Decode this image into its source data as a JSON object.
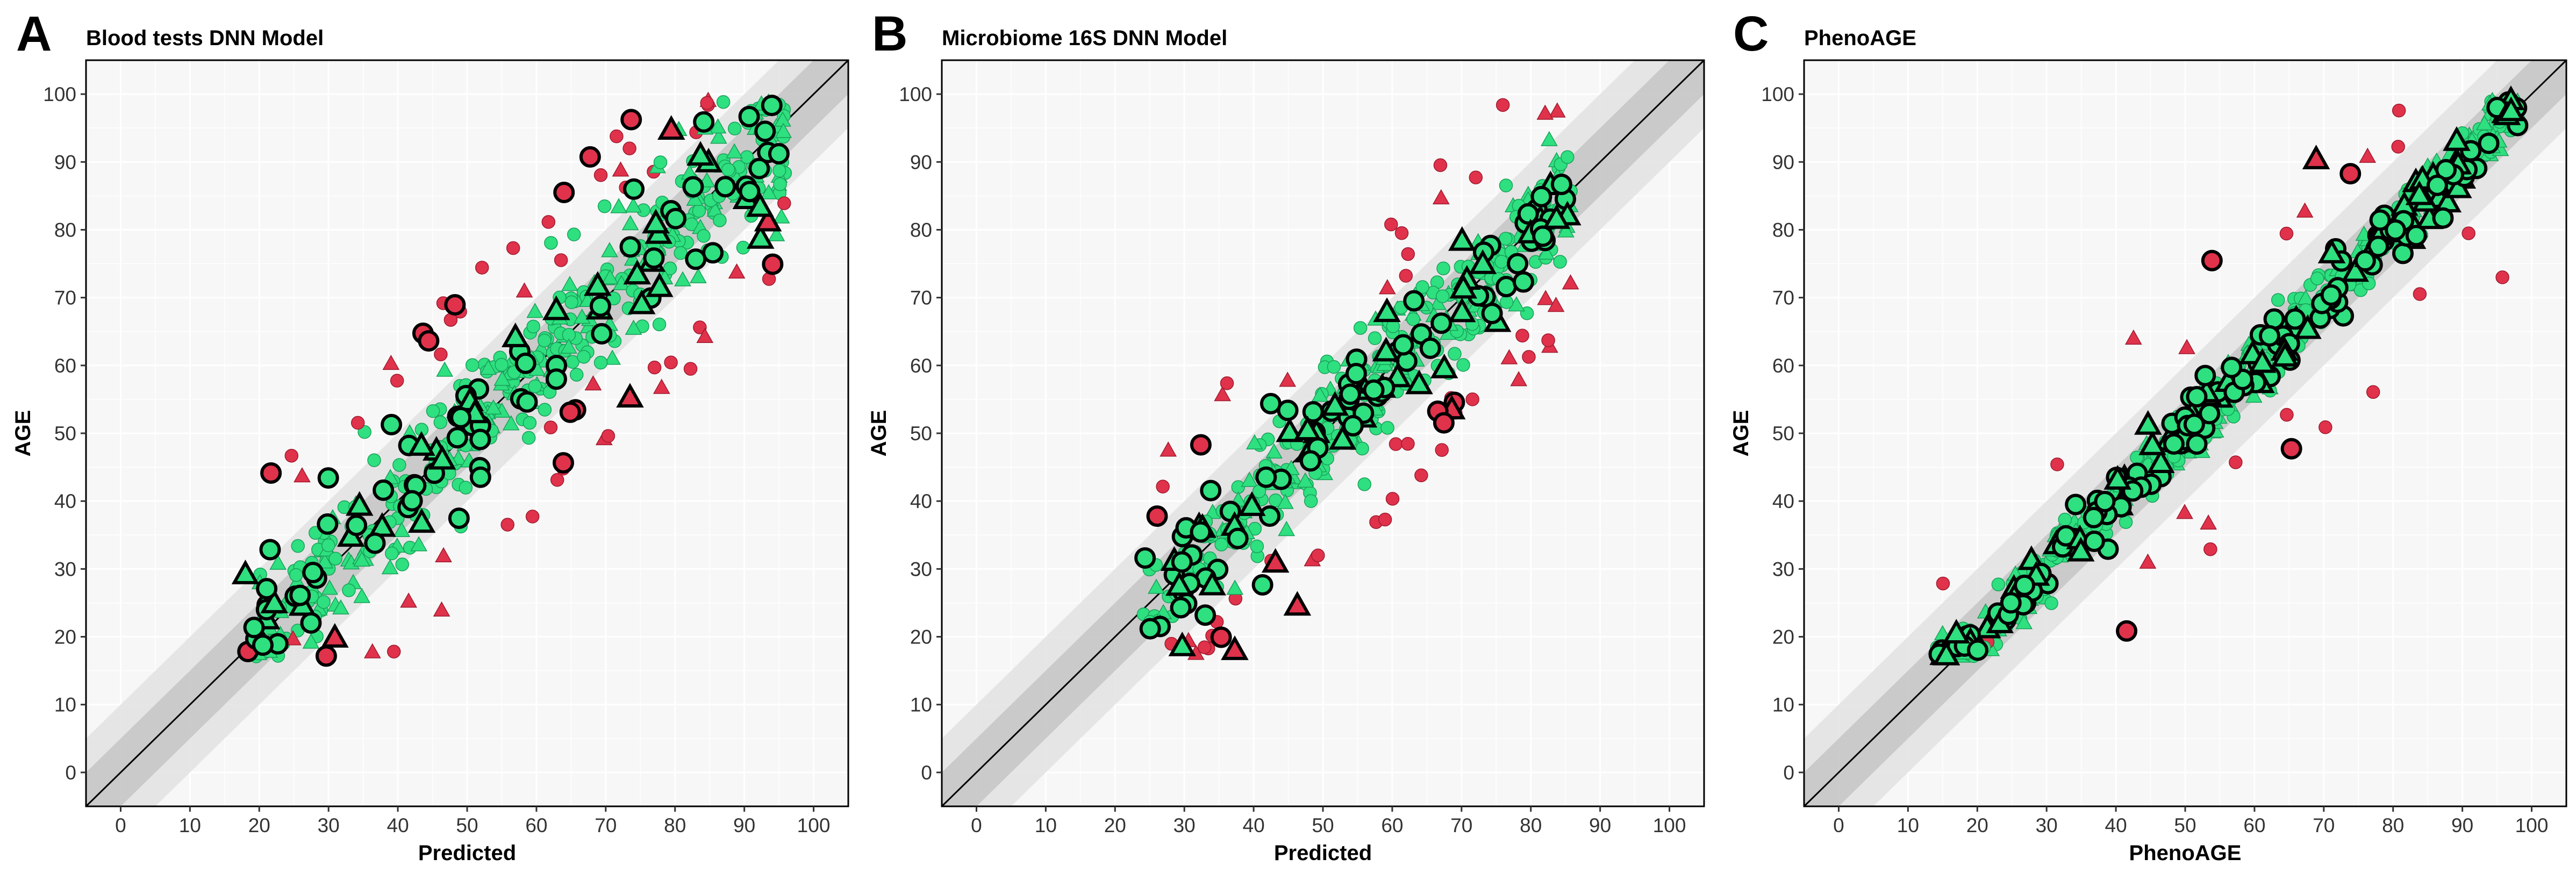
{
  "colors": {
    "accurate": "#2ee07f",
    "outlier": "#e0324b",
    "band_outer": "#e2e2e2",
    "band_inner": "#c6c6c6",
    "panel_bg": "#f7f7f7",
    "grid": "#ffffff"
  },
  "chart_data": [
    {
      "panel": "A",
      "type": "scatter",
      "title": "Blood tests DNN Model",
      "xlabel": "Predicted",
      "ylabel": "AGE",
      "xlim": [
        -5,
        105
      ],
      "ylim": [
        -5,
        105
      ],
      "xticks": [
        0,
        10,
        20,
        30,
        40,
        50,
        60,
        70,
        80,
        90,
        100
      ],
      "yticks": [
        0,
        10,
        20,
        30,
        40,
        50,
        60,
        70,
        80,
        90,
        100
      ],
      "identity_line": true,
      "bands": [
        10,
        5
      ],
      "spread": 5.5,
      "xrange": [
        18,
        96
      ],
      "outlier_rate": 0.14,
      "seed": 11,
      "n": 560,
      "marker_shapes": [
        "circle",
        "triangle"
      ],
      "legend": "none"
    },
    {
      "panel": "B",
      "type": "scatter",
      "title": "Microbiome 16S DNN Model",
      "xlabel": "Predicted",
      "ylabel": "AGE",
      "xlim": [
        -5,
        105
      ],
      "ylim": [
        -5,
        105
      ],
      "xticks": [
        0,
        10,
        20,
        30,
        40,
        50,
        60,
        70,
        80,
        90,
        100
      ],
      "yticks": [
        0,
        10,
        20,
        30,
        40,
        50,
        60,
        70,
        80,
        90,
        100
      ],
      "identity_line": true,
      "bands": [
        10,
        5
      ],
      "spread": 4.5,
      "xrange": [
        24,
        86
      ],
      "outlier_rate": 0.12,
      "seed": 29,
      "n": 480,
      "marker_shapes": [
        "circle",
        "triangle"
      ],
      "legend": "none"
    },
    {
      "panel": "C",
      "type": "scatter",
      "title": "PhenoAGE",
      "xlabel": "PhenoAGE",
      "ylabel": "AGE",
      "xlim": [
        -5,
        105
      ],
      "ylim": [
        -5,
        105
      ],
      "xticks": [
        0,
        10,
        20,
        30,
        40,
        50,
        60,
        70,
        80,
        90,
        100
      ],
      "yticks": [
        0,
        10,
        20,
        30,
        40,
        50,
        60,
        70,
        80,
        90,
        100
      ],
      "identity_line": true,
      "bands": [
        10,
        5
      ],
      "spread": 2.4,
      "xrange": [
        14,
        98
      ],
      "outlier_rate": 0.035,
      "seed": 47,
      "n": 640,
      "marker_shapes": [
        "circle",
        "triangle"
      ],
      "legend": "none"
    }
  ]
}
